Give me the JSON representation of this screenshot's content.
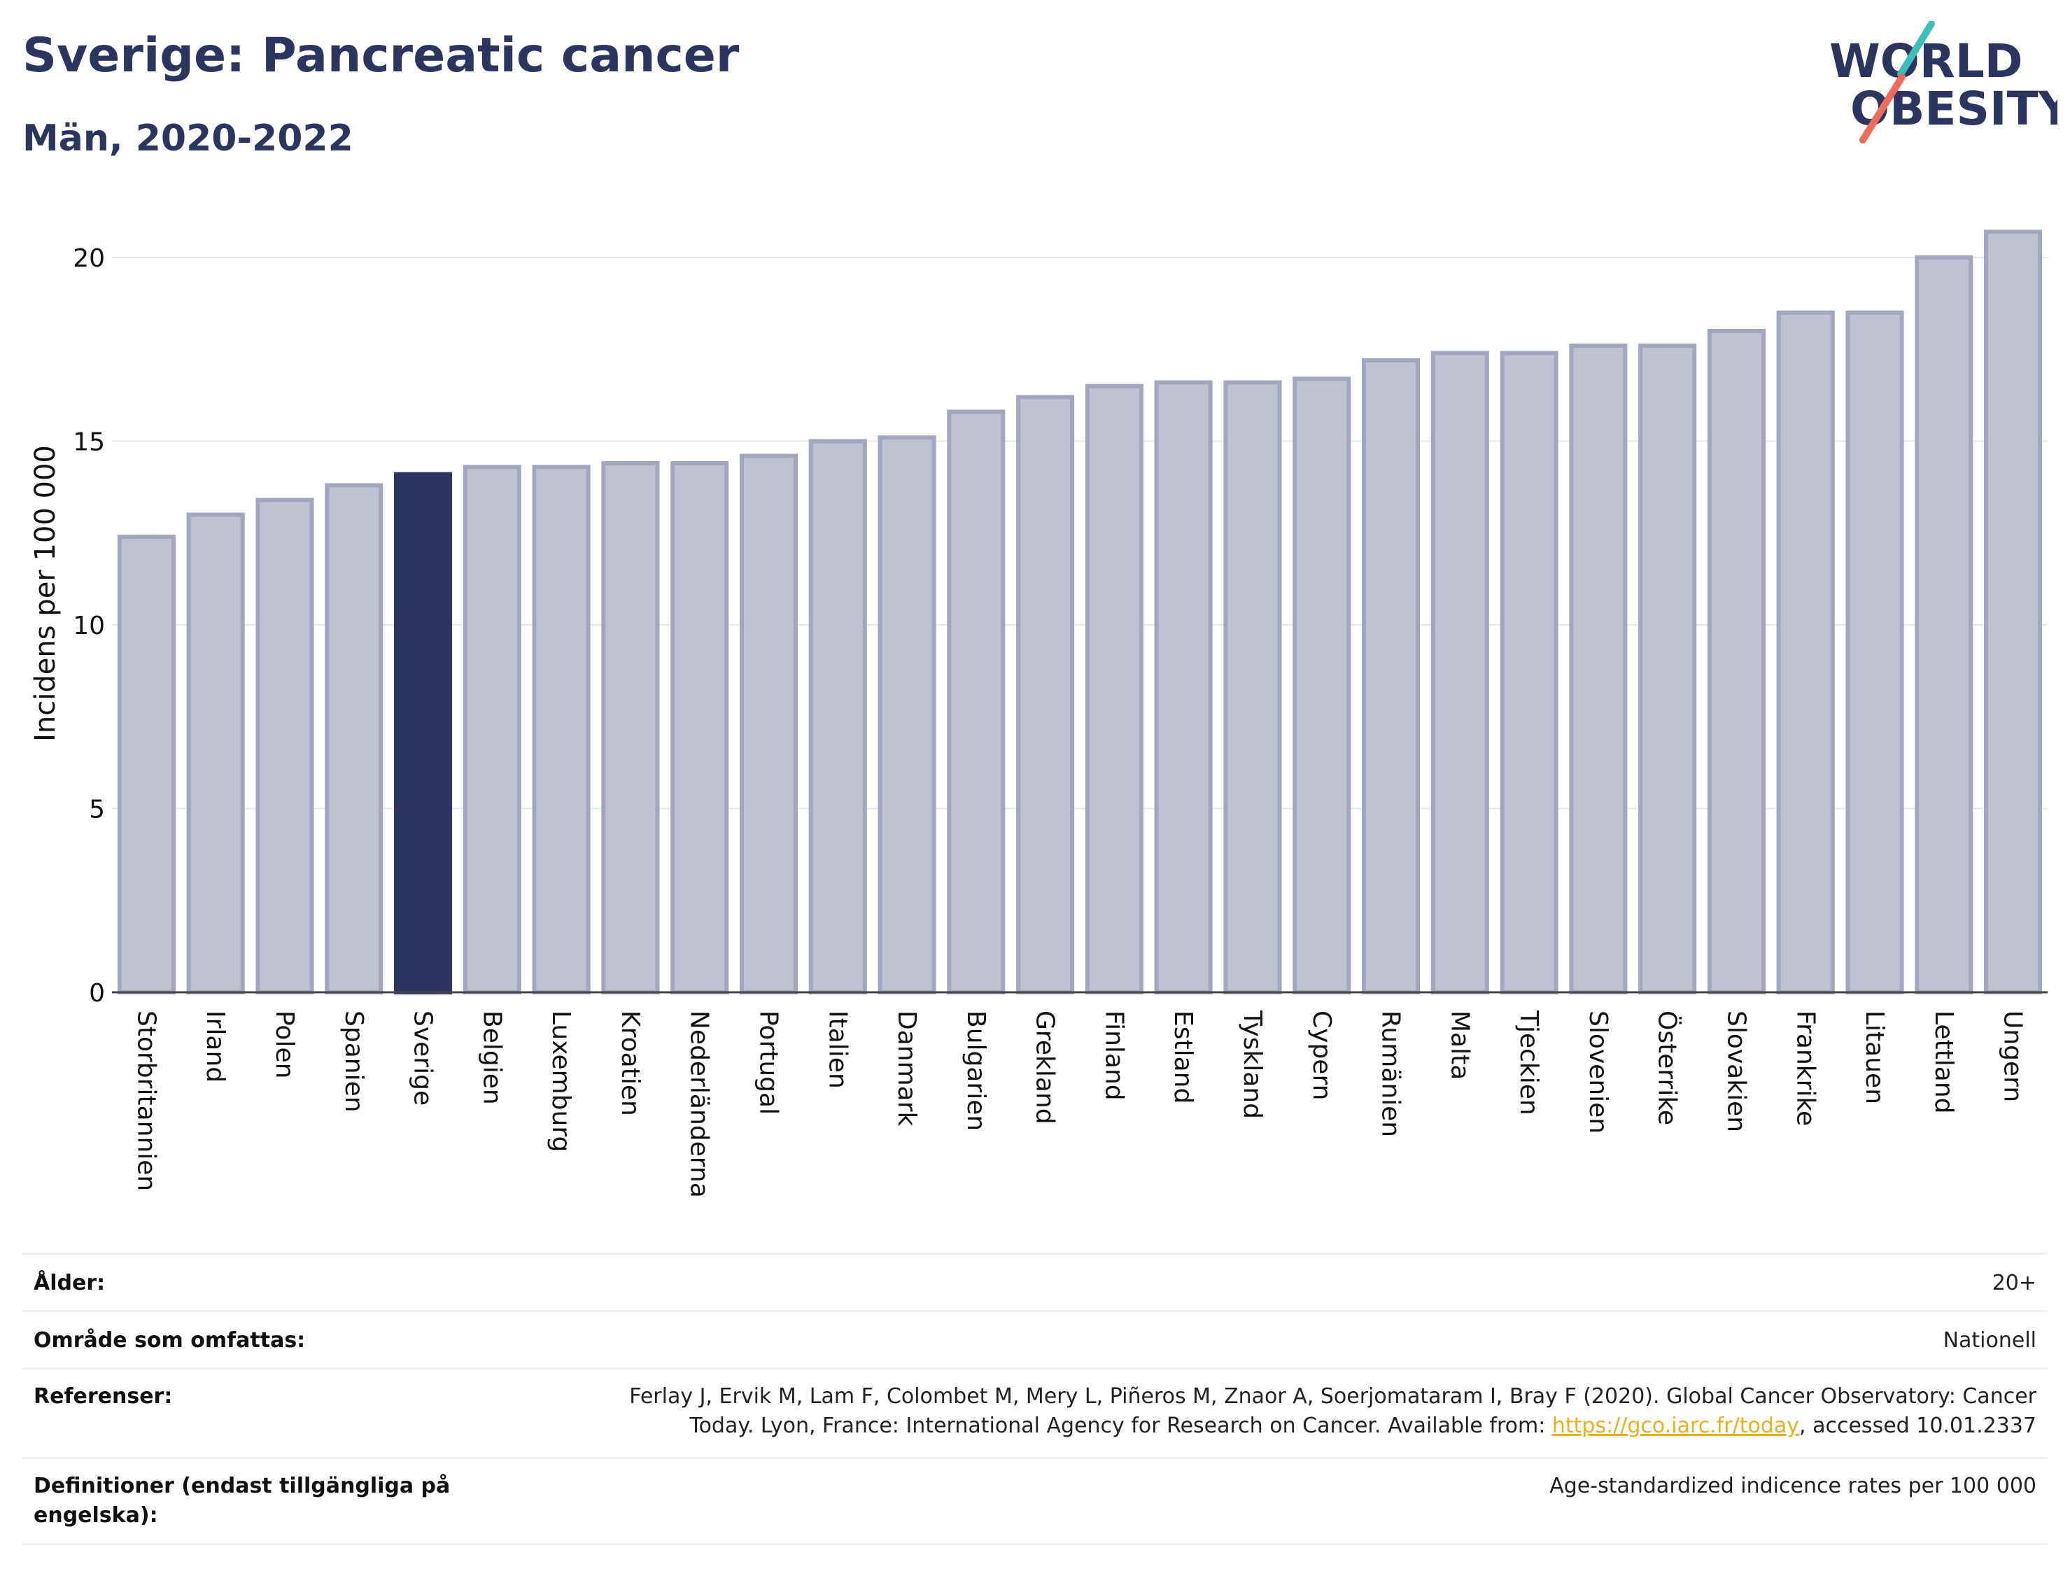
{
  "header": {
    "title": "Sverige: Pancreatic cancer",
    "subtitle": "Män, 2020-2022",
    "logo_line1": "WORLD",
    "logo_line2": "OBESITY"
  },
  "colors": {
    "navy": "#2b3560",
    "bar_fill": "#bfc2d0",
    "bar_stroke": "#a2a7bd",
    "highlight": "#2b3560",
    "logo_teal": "#3bbfb7",
    "logo_coral": "#ee6a5a",
    "link": "#e8b020"
  },
  "chart_data": {
    "type": "bar",
    "ylabel": "Incidens per 100 000",
    "ylim": [
      0,
      21
    ],
    "yticks": [
      0,
      5,
      10,
      15,
      20
    ],
    "grid": true,
    "highlight_category": "Sverige",
    "categories": [
      "Storbritannien",
      "Irland",
      "Polen",
      "Spanien",
      "Sverige",
      "Belgien",
      "Luxemburg",
      "Kroatien",
      "Nederländerna",
      "Portugal",
      "Italien",
      "Danmark",
      "Bulgarien",
      "Grekland",
      "Finland",
      "Estland",
      "Tyskland",
      "Cypern",
      "Rumänien",
      "Malta",
      "Tjeckien",
      "Slovenien",
      "Österrike",
      "Slovakien",
      "Frankrike",
      "Litauen",
      "Lettland",
      "Ungern"
    ],
    "values": [
      12.4,
      13.0,
      13.4,
      13.8,
      14.1,
      14.3,
      14.3,
      14.4,
      14.4,
      14.6,
      15.0,
      15.1,
      15.8,
      16.2,
      16.5,
      16.6,
      16.6,
      16.7,
      17.2,
      17.4,
      17.4,
      17.6,
      17.6,
      18.0,
      18.5,
      18.5,
      20.0,
      20.7
    ]
  },
  "meta": {
    "rows": [
      {
        "label": "Ålder:",
        "value": "20+"
      },
      {
        "label": "Område som omfattas:",
        "value": "Nationell"
      },
      {
        "label": "Referenser:",
        "value_line1": "Ferlay J, Ervik M, Lam F, Colombet M, Mery L, Piñeros M, Znaor A, Soerjomataram I, Bray F (2020). Global Cancer Observatory: Cancer",
        "value_line2_pre": "Today. Lyon, France: International Agency for Research on Cancer. Available from: ",
        "value_link": "https://gco.iarc.fr/today",
        "value_line2_post": ", accessed 10.01.2337"
      },
      {
        "label_line1": "Definitioner (endast tillgängliga på",
        "label_line2": "engelska):",
        "value": "Age-standardized indicence rates per 100 000"
      }
    ]
  }
}
